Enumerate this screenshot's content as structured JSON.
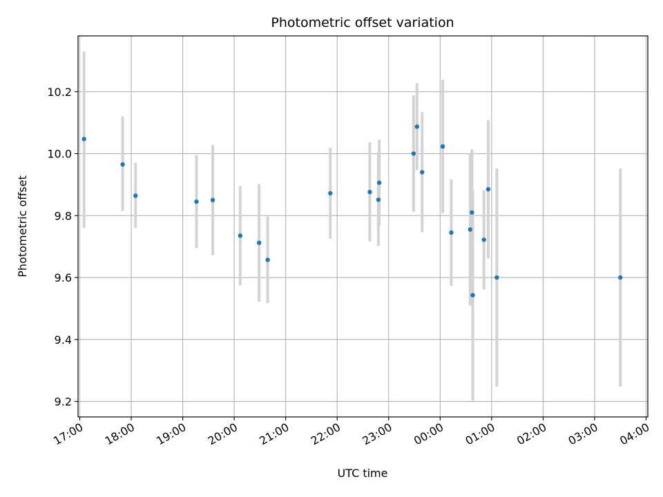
{
  "chart_data": {
    "type": "scatter",
    "title": "Photometric offset variation",
    "xlabel": "UTC time",
    "ylabel": "Photometric offset",
    "x_axis": "time",
    "x_ticks": [
      "17:00",
      "18:00",
      "19:00",
      "20:00",
      "21:00",
      "22:00",
      "23:00",
      "00:00",
      "01:00",
      "02:00",
      "03:00",
      "04:00"
    ],
    "xlim": [
      "16:58",
      "04:02"
    ],
    "y_ticks": [
      "9.2",
      "9.4",
      "9.6",
      "9.8",
      "10.0",
      "10.2"
    ],
    "ylim": [
      9.15,
      10.38
    ],
    "grid": true,
    "colors": {
      "point": "#1f77b4",
      "errorbar": "#d3d3d3",
      "grid": "#b0b0b0",
      "axis": "#000000"
    },
    "points": [
      {
        "x": "17:05",
        "y": 10.047,
        "y_low": 9.76,
        "y_high": 10.33
      },
      {
        "x": "17:50",
        "y": 9.965,
        "y_low": 9.815,
        "y_high": 10.12
      },
      {
        "x": "18:05",
        "y": 9.864,
        "y_low": 9.76,
        "y_high": 9.97
      },
      {
        "x": "19:16",
        "y": 9.845,
        "y_low": 9.695,
        "y_high": 9.995
      },
      {
        "x": "19:35",
        "y": 9.85,
        "y_low": 9.672,
        "y_high": 10.028
      },
      {
        "x": "20:07",
        "y": 9.735,
        "y_low": 9.575,
        "y_high": 9.895
      },
      {
        "x": "20:29",
        "y": 9.712,
        "y_low": 9.522,
        "y_high": 9.902
      },
      {
        "x": "20:39",
        "y": 9.657,
        "y_low": 9.517,
        "y_high": 9.797
      },
      {
        "x": "21:52",
        "y": 9.872,
        "y_low": 9.725,
        "y_high": 10.019
      },
      {
        "x": "22:38",
        "y": 9.876,
        "y_low": 9.716,
        "y_high": 10.036
      },
      {
        "x": "22:48",
        "y": 9.851,
        "y_low": 9.702,
        "y_high": 10.0
      },
      {
        "x": "22:49",
        "y": 9.906,
        "y_low": 9.768,
        "y_high": 10.044
      },
      {
        "x": "23:29",
        "y": 10.0,
        "y_low": 9.812,
        "y_high": 10.188
      },
      {
        "x": "23:33",
        "y": 10.087,
        "y_low": 9.947,
        "y_high": 10.227
      },
      {
        "x": "23:39",
        "y": 9.94,
        "y_low": 9.746,
        "y_high": 10.134
      },
      {
        "x": "00:03",
        "y": 10.023,
        "y_low": 9.808,
        "y_high": 10.238
      },
      {
        "x": "00:13",
        "y": 9.745,
        "y_low": 9.573,
        "y_high": 9.917
      },
      {
        "x": "00:35",
        "y": 9.755,
        "y_low": 9.51,
        "y_high": 10.0
      },
      {
        "x": "00:37",
        "y": 9.81,
        "y_low": 9.606,
        "y_high": 10.014
      },
      {
        "x": "00:38",
        "y": 9.543,
        "y_low": 9.203,
        "y_high": 9.883
      },
      {
        "x": "00:51",
        "y": 9.722,
        "y_low": 9.562,
        "y_high": 9.882
      },
      {
        "x": "00:56",
        "y": 9.885,
        "y_low": 9.662,
        "y_high": 10.108
      },
      {
        "x": "01:06",
        "y": 9.6,
        "y_low": 9.248,
        "y_high": 9.952
      },
      {
        "x": "03:30",
        "y": 9.6,
        "y_low": 9.248,
        "y_high": 9.952
      }
    ]
  }
}
